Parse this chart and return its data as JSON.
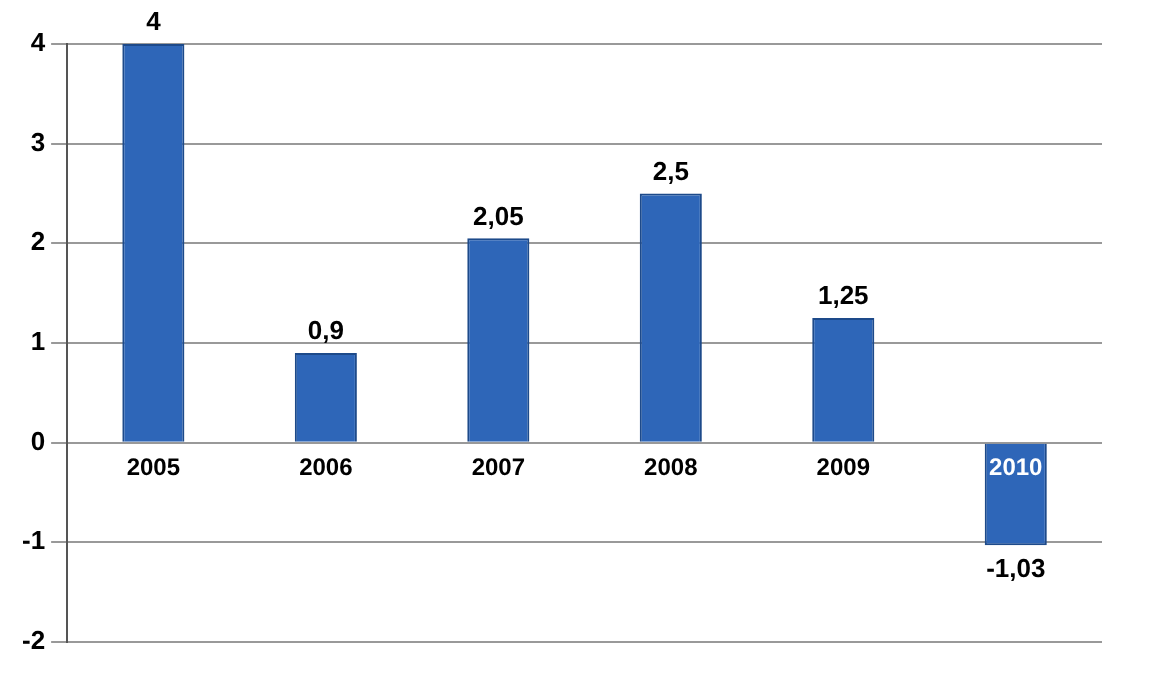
{
  "chart_data": {
    "type": "bar",
    "categories": [
      "2005",
      "2006",
      "2007",
      "2008",
      "2009",
      "2010"
    ],
    "values": [
      4,
      0.9,
      2.05,
      2.5,
      1.25,
      -1.03
    ],
    "value_labels": [
      "4",
      "0,9",
      "2,05",
      "2,5",
      "1,25",
      "-1,03"
    ],
    "color": "#2e66b8",
    "ylim": [
      -2,
      4
    ],
    "yticks": [
      -2,
      -1,
      0,
      1,
      2,
      3,
      4
    ],
    "grid": "y",
    "legend": false
  }
}
